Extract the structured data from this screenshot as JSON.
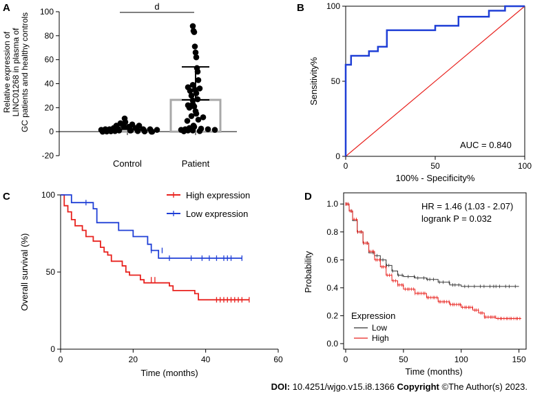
{
  "footer": {
    "doi_label": "DOI:",
    "doi": "10.4251/wjgo.v15.i8.1366",
    "copyright_label": "Copyright",
    "copyright_text": "©The Author(s) 2023."
  },
  "chart_data": [
    {
      "panel": "A",
      "type": "bar",
      "ylabel_lines": [
        "Relative expression of",
        "LINC01268 in plasma of",
        "GC patients and healthy controls"
      ],
      "categories": [
        "Control",
        "Patient"
      ],
      "values": [
        2,
        26.5
      ],
      "error_sd": [
        1.8,
        27.5
      ],
      "ylim": [
        -20,
        100
      ],
      "yticks": [
        -20,
        0,
        20,
        40,
        60,
        80,
        100
      ],
      "significance": "d",
      "points": {
        "Control": [
          11,
          8,
          7,
          6,
          5,
          5,
          4,
          4,
          3,
          3,
          3,
          2,
          2,
          2,
          2,
          1.5,
          1.5,
          1,
          1,
          1,
          0.5,
          0.5,
          0.3,
          0.2,
          0.1,
          0,
          0,
          0
        ],
        "Patient": [
          88,
          84,
          83,
          71,
          66,
          62,
          53,
          50,
          43,
          39,
          37,
          36,
          35,
          34,
          32,
          30,
          27,
          26,
          23,
          22,
          21,
          20,
          17,
          15,
          13,
          12,
          10,
          9,
          5,
          4,
          3,
          2.5,
          2,
          2,
          1.5,
          1.5,
          1,
          1,
          0.5,
          0.3
        ]
      }
    },
    {
      "panel": "B",
      "type": "line",
      "xlabel": "100% - Specificity%",
      "ylabel": "Sensitivity%",
      "xlim": [
        0,
        100
      ],
      "ylim": [
        0,
        100
      ],
      "xticks": [
        0,
        50,
        100
      ],
      "yticks": [
        0,
        50,
        100
      ],
      "annotation": "AUC = 0.840",
      "roc": [
        [
          0,
          0
        ],
        [
          0,
          61
        ],
        [
          3,
          61
        ],
        [
          3,
          67
        ],
        [
          13,
          67
        ],
        [
          13,
          70
        ],
        [
          18,
          70
        ],
        [
          18,
          73
        ],
        [
          23,
          73
        ],
        [
          23,
          84
        ],
        [
          50,
          84
        ],
        [
          50,
          87
        ],
        [
          63,
          87
        ],
        [
          63,
          93
        ],
        [
          80,
          93
        ],
        [
          80,
          97
        ],
        [
          89,
          97
        ],
        [
          89,
          100
        ],
        [
          100,
          100
        ]
      ],
      "reference": [
        [
          0,
          0
        ],
        [
          100,
          100
        ]
      ]
    },
    {
      "panel": "C",
      "type": "line",
      "xlabel": "Time (months)",
      "ylabel": "Overall survival (%)",
      "xlim": [
        0,
        60
      ],
      "ylim": [
        0,
        100
      ],
      "xticks": [
        0,
        20,
        40,
        60
      ],
      "yticks": [
        0,
        50,
        100
      ],
      "series": [
        {
          "name": "High expression",
          "color": "#e8211d",
          "steps": [
            [
              0,
              100
            ],
            [
              1,
              93
            ],
            [
              2,
              89
            ],
            [
              3,
              84
            ],
            [
              4,
              80
            ],
            [
              6,
              77
            ],
            [
              7,
              73
            ],
            [
              9,
              70
            ],
            [
              11,
              66
            ],
            [
              12,
              63
            ],
            [
              13,
              61
            ],
            [
              14,
              57
            ],
            [
              17,
              54
            ],
            [
              18,
              50
            ],
            [
              19,
              48
            ],
            [
              22,
              45
            ],
            [
              23,
              43
            ],
            [
              30,
              41
            ],
            [
              31,
              38
            ],
            [
              37,
              36
            ],
            [
              38,
              32
            ],
            [
              52,
              32
            ]
          ],
          "censors": [
            [
              25,
              45
            ],
            [
              26,
              45
            ],
            [
              43,
              32
            ],
            [
              44,
              32
            ],
            [
              45,
              32
            ],
            [
              46,
              32
            ],
            [
              47,
              32
            ],
            [
              48,
              32
            ],
            [
              49,
              32
            ],
            [
              50,
              32
            ],
            [
              52,
              32
            ]
          ]
        },
        {
          "name": "Low expression",
          "color": "#1f3fd6",
          "steps": [
            [
              0,
              100
            ],
            [
              3,
              95
            ],
            [
              9,
              91
            ],
            [
              10,
              82
            ],
            [
              16,
              77
            ],
            [
              20,
              73
            ],
            [
              24,
              68
            ],
            [
              25,
              64
            ],
            [
              27,
              59
            ],
            [
              50,
              59
            ]
          ],
          "censors": [
            [
              7,
              95
            ],
            [
              25,
              64
            ],
            [
              28,
              64
            ],
            [
              30,
              59
            ],
            [
              36,
              59
            ],
            [
              39,
              59
            ],
            [
              41,
              59
            ],
            [
              43,
              59
            ],
            [
              45,
              59
            ],
            [
              46,
              59
            ],
            [
              47,
              59
            ],
            [
              50,
              59
            ]
          ]
        }
      ]
    },
    {
      "panel": "D",
      "type": "line",
      "xlabel": "Time (months)",
      "ylabel": "Probability",
      "xlim": [
        0,
        155
      ],
      "ylim": [
        0,
        1
      ],
      "xticks": [
        0,
        50,
        100,
        150
      ],
      "yticks": [
        0.0,
        0.2,
        0.4,
        0.6,
        0.8,
        1.0
      ],
      "ytick_labels": [
        "0.0",
        "0.2",
        "0.4",
        "0.6",
        "0.8",
        "1.0"
      ],
      "annotation_lines": [
        "HR = 1.46 (1.03 - 2.07)",
        "logrank P = 0.032"
      ],
      "legend_title": "Expression",
      "series": [
        {
          "name": "Low",
          "color": "#333333",
          "points": [
            [
              0,
              1.0
            ],
            [
              3,
              0.95
            ],
            [
              6,
              0.88
            ],
            [
              10,
              0.8
            ],
            [
              15,
              0.72
            ],
            [
              20,
              0.65
            ],
            [
              25,
              0.63
            ],
            [
              30,
              0.6
            ],
            [
              35,
              0.56
            ],
            [
              40,
              0.52
            ],
            [
              45,
              0.49
            ],
            [
              50,
              0.48
            ],
            [
              60,
              0.47
            ],
            [
              70,
              0.46
            ],
            [
              80,
              0.44
            ],
            [
              90,
              0.42
            ],
            [
              100,
              0.41
            ],
            [
              110,
              0.41
            ],
            [
              120,
              0.41
            ],
            [
              130,
              0.41
            ],
            [
              150,
              0.41
            ]
          ]
        },
        {
          "name": "High",
          "color": "#e8211d",
          "points": [
            [
              0,
              1.0
            ],
            [
              3,
              0.95
            ],
            [
              6,
              0.89
            ],
            [
              10,
              0.8
            ],
            [
              15,
              0.72
            ],
            [
              20,
              0.66
            ],
            [
              25,
              0.6
            ],
            [
              30,
              0.55
            ],
            [
              35,
              0.49
            ],
            [
              40,
              0.45
            ],
            [
              45,
              0.42
            ],
            [
              50,
              0.39
            ],
            [
              60,
              0.36
            ],
            [
              70,
              0.33
            ],
            [
              80,
              0.3
            ],
            [
              90,
              0.28
            ],
            [
              100,
              0.26
            ],
            [
              110,
              0.24
            ],
            [
              115,
              0.22
            ],
            [
              120,
              0.19
            ],
            [
              130,
              0.18
            ],
            [
              152,
              0.18
            ]
          ]
        }
      ]
    }
  ]
}
